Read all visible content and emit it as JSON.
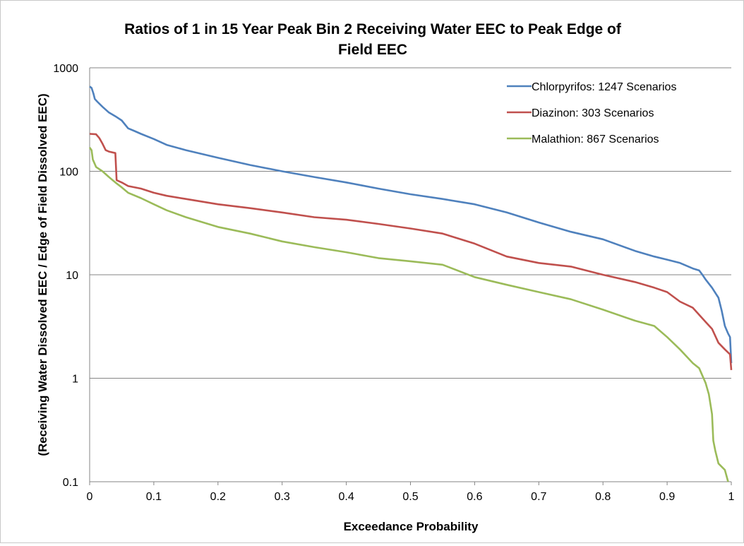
{
  "chart_data": {
    "type": "line",
    "title_lines": [
      "Ratios of 1 in 15 Year Peak Bin 2 Receiving Water EEC to Peak Edge of",
      "Field EEC"
    ],
    "xlabel": "Exceedance Probability",
    "ylabel": "(Receiving Water Dissolved EEC / Edge of Field Dissolved EEC)",
    "xlim": [
      0,
      1
    ],
    "ylim": [
      0.1,
      1000
    ],
    "yscale": "log",
    "grid": "horizontal",
    "legend_position": "top-right",
    "x_ticks": [
      "0",
      "0.1",
      "0.2",
      "0.3",
      "0.4",
      "0.5",
      "0.6",
      "0.7",
      "0.8",
      "0.9",
      "1"
    ],
    "y_ticks": [
      "1000",
      "100",
      "10",
      "1",
      "0.1"
    ],
    "y_tick_values": [
      1000,
      100,
      10,
      1,
      0.1
    ],
    "series": [
      {
        "name": "Chlorpyrifos: 1247 Scenarios",
        "color": "#4F81BD",
        "points": [
          [
            0,
            660
          ],
          [
            0.003,
            640
          ],
          [
            0.006,
            560
          ],
          [
            0.008,
            500
          ],
          [
            0.012,
            470
          ],
          [
            0.02,
            420
          ],
          [
            0.03,
            370
          ],
          [
            0.04,
            340
          ],
          [
            0.05,
            310
          ],
          [
            0.06,
            260
          ],
          [
            0.07,
            245
          ],
          [
            0.08,
            230
          ],
          [
            0.1,
            205
          ],
          [
            0.12,
            180
          ],
          [
            0.15,
            160
          ],
          [
            0.2,
            135
          ],
          [
            0.25,
            115
          ],
          [
            0.3,
            100
          ],
          [
            0.35,
            88
          ],
          [
            0.4,
            78
          ],
          [
            0.45,
            68
          ],
          [
            0.5,
            60
          ],
          [
            0.55,
            54
          ],
          [
            0.6,
            48
          ],
          [
            0.65,
            40
          ],
          [
            0.7,
            32
          ],
          [
            0.75,
            26
          ],
          [
            0.8,
            22
          ],
          [
            0.85,
            17
          ],
          [
            0.88,
            15
          ],
          [
            0.9,
            14
          ],
          [
            0.92,
            13
          ],
          [
            0.94,
            11.5
          ],
          [
            0.95,
            11
          ],
          [
            0.955,
            10
          ],
          [
            0.96,
            9
          ],
          [
            0.97,
            7.5
          ],
          [
            0.98,
            6
          ],
          [
            0.985,
            4.5
          ],
          [
            0.99,
            3.2
          ],
          [
            0.995,
            2.7
          ],
          [
            0.998,
            2.5
          ],
          [
            1,
            1.4
          ]
        ]
      },
      {
        "name": "Diazinon: 303 Scenarios",
        "color": "#C0504D",
        "points": [
          [
            0,
            230
          ],
          [
            0.01,
            228
          ],
          [
            0.015,
            210
          ],
          [
            0.02,
            185
          ],
          [
            0.025,
            160
          ],
          [
            0.03,
            155
          ],
          [
            0.04,
            150
          ],
          [
            0.042,
            82
          ],
          [
            0.05,
            78
          ],
          [
            0.06,
            72
          ],
          [
            0.08,
            68
          ],
          [
            0.1,
            62
          ],
          [
            0.12,
            58
          ],
          [
            0.15,
            54
          ],
          [
            0.2,
            48
          ],
          [
            0.25,
            44
          ],
          [
            0.3,
            40
          ],
          [
            0.35,
            36
          ],
          [
            0.4,
            34
          ],
          [
            0.45,
            31
          ],
          [
            0.5,
            28
          ],
          [
            0.55,
            25
          ],
          [
            0.6,
            20
          ],
          [
            0.65,
            15
          ],
          [
            0.7,
            13
          ],
          [
            0.75,
            12
          ],
          [
            0.8,
            10
          ],
          [
            0.85,
            8.5
          ],
          [
            0.88,
            7.5
          ],
          [
            0.9,
            6.8
          ],
          [
            0.92,
            5.5
          ],
          [
            0.94,
            4.8
          ],
          [
            0.96,
            3.5
          ],
          [
            0.97,
            3
          ],
          [
            0.98,
            2.2
          ],
          [
            0.99,
            1.9
          ],
          [
            0.998,
            1.7
          ],
          [
            1,
            1.2
          ]
        ]
      },
      {
        "name": "Malathion: 867 Scenarios",
        "color": "#9BBB59",
        "points": [
          [
            0,
            170
          ],
          [
            0.003,
            160
          ],
          [
            0.005,
            130
          ],
          [
            0.01,
            110
          ],
          [
            0.02,
            100
          ],
          [
            0.03,
            88
          ],
          [
            0.04,
            78
          ],
          [
            0.05,
            70
          ],
          [
            0.06,
            62
          ],
          [
            0.08,
            55
          ],
          [
            0.1,
            48
          ],
          [
            0.12,
            42
          ],
          [
            0.15,
            36
          ],
          [
            0.2,
            29
          ],
          [
            0.25,
            25
          ],
          [
            0.3,
            21
          ],
          [
            0.35,
            18.5
          ],
          [
            0.4,
            16.5
          ],
          [
            0.45,
            14.5
          ],
          [
            0.5,
            13.5
          ],
          [
            0.55,
            12.5
          ],
          [
            0.6,
            9.5
          ],
          [
            0.65,
            8
          ],
          [
            0.7,
            6.8
          ],
          [
            0.75,
            5.8
          ],
          [
            0.8,
            4.6
          ],
          [
            0.85,
            3.6
          ],
          [
            0.88,
            3.2
          ],
          [
            0.9,
            2.5
          ],
          [
            0.92,
            1.9
          ],
          [
            0.94,
            1.4
          ],
          [
            0.95,
            1.25
          ],
          [
            0.96,
            0.9
          ],
          [
            0.965,
            0.7
          ],
          [
            0.97,
            0.45
          ],
          [
            0.972,
            0.25
          ],
          [
            0.975,
            0.2
          ],
          [
            0.98,
            0.15
          ],
          [
            0.99,
            0.13
          ],
          [
            0.995,
            0.1
          ]
        ]
      }
    ]
  }
}
